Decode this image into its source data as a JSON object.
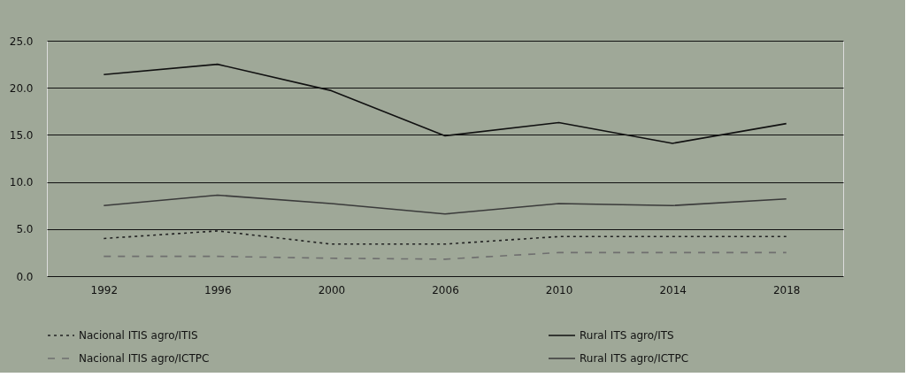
{
  "chart_data": {
    "type": "line",
    "categories": [
      "1992",
      "1996",
      "2000",
      "2006",
      "2010",
      "2014",
      "2018"
    ],
    "series": [
      {
        "name": "Nacional ITIS agro/ITIS",
        "color": "#222222",
        "line_style": "dotted",
        "values": [
          4.0,
          4.8,
          3.4,
          3.4,
          4.2,
          4.2,
          4.2
        ]
      },
      {
        "name": "Rural ITS agro/ITS",
        "color": "#111111",
        "line_style": "solid",
        "values": [
          21.4,
          22.5,
          19.7,
          14.9,
          16.3,
          14.1,
          16.2
        ]
      },
      {
        "name": "Nacional ITIS agro/ICTPC",
        "color": "#6f6f6f",
        "line_style": "dashed",
        "values": [
          2.1,
          2.1,
          1.9,
          1.8,
          2.5,
          2.5,
          2.5
        ]
      },
      {
        "name": "Rural ITS agro/ICTPC",
        "color": "#3a3a3a",
        "line_style": "solid",
        "values": [
          7.5,
          8.6,
          7.7,
          6.6,
          7.7,
          7.5,
          8.2
        ]
      }
    ],
    "ylim": [
      0,
      25
    ],
    "yticks": [
      {
        "value": 0,
        "label": "0.0"
      },
      {
        "value": 5,
        "label": "5.0"
      },
      {
        "value": 10,
        "label": "10.0"
      },
      {
        "value": 15,
        "label": "15.0"
      },
      {
        "value": 20,
        "label": "20.0"
      },
      {
        "value": 25,
        "label": "25.0"
      }
    ],
    "grid": "y",
    "legend": "bottom",
    "marker": "none"
  }
}
